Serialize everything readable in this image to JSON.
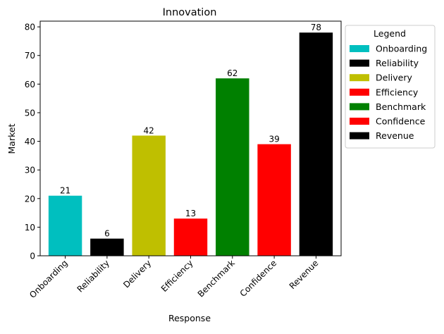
{
  "chart_data": {
    "type": "bar",
    "title": "Innovation",
    "xlabel": "Response",
    "ylabel": "Market",
    "categories": [
      "Onboarding",
      "Reliability",
      "Delivery",
      "Efficiency",
      "Benchmark",
      "Confidence",
      "Revenue"
    ],
    "values": [
      21,
      6,
      42,
      13,
      62,
      39,
      78
    ],
    "colors": [
      "#00BFBF",
      "#000000",
      "#BFBF00",
      "#FF0000",
      "#008000",
      "#FF0000",
      "#000000"
    ],
    "ylim": [
      0,
      82
    ],
    "yticks": [
      0,
      10,
      20,
      30,
      40,
      50,
      60,
      70,
      80
    ],
    "grid": false,
    "legend": {
      "title": "Legend",
      "placement": "outside-top-right",
      "entries": [
        "Onboarding",
        "Reliability",
        "Delivery",
        "Efficiency",
        "Benchmark",
        "Confidence",
        "Revenue"
      ]
    }
  }
}
